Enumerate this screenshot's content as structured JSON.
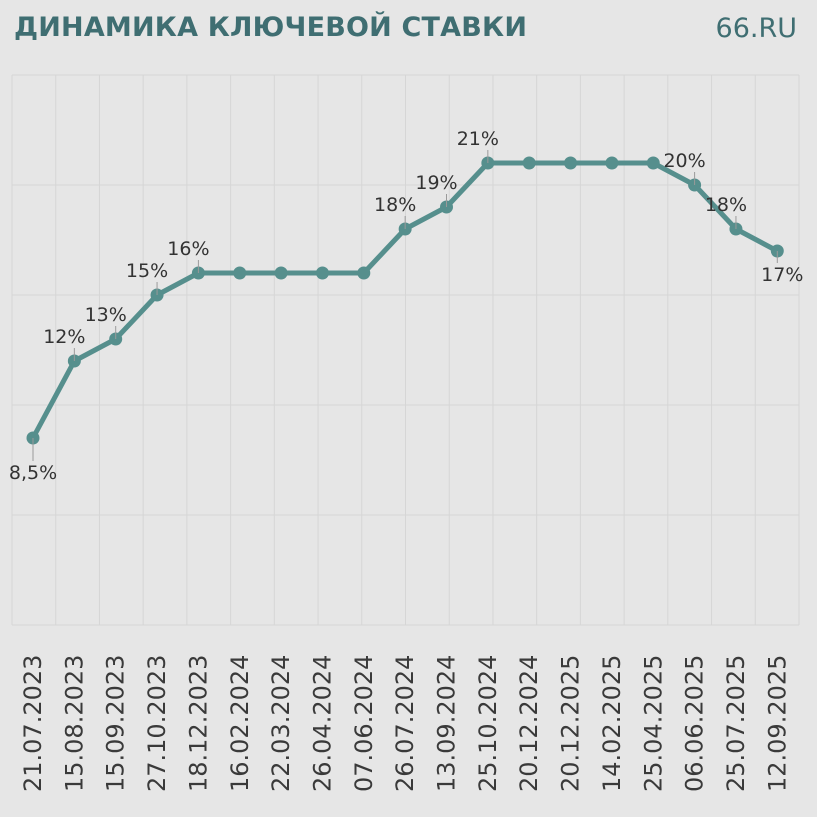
{
  "header": {
    "title": "ДИНАМИКА КЛЮЧЕВОЙ СТАВКИ",
    "brand": "66.RU"
  },
  "colors": {
    "background": "#e6e6e6",
    "title": "#3f6e72",
    "line": "#568f8d",
    "grid": "#d6d6d6",
    "text": "#333333"
  },
  "chart_data": {
    "type": "line",
    "title": "ДИНАМИКА КЛЮЧЕВОЙ СТАВКИ",
    "xlabel": "",
    "ylabel": "",
    "grid": true,
    "ylim": [
      0,
      25
    ],
    "x": [
      "21.07.2023",
      "15.08.2023",
      "15.09.2023",
      "27.10.2023",
      "18.12.2023",
      "16.02.2024",
      "22.03.2024",
      "26.04.2024",
      "07.06.2024",
      "26.07.2024",
      "13.09.2024",
      "25.10.2024",
      "20.12.2024",
      "20.12.2025",
      "14.02.2025",
      "25.04.2025",
      "06.06.2025",
      "25.07.2025",
      "12.09.2025"
    ],
    "series": [
      {
        "values": [
          8.5,
          12,
          13,
          15,
          16,
          16,
          16,
          16,
          16,
          18,
          19,
          21,
          21,
          21,
          21,
          21,
          20,
          18,
          17
        ]
      }
    ],
    "data_labels": [
      {
        "index": 0,
        "text": "8,5%"
      },
      {
        "index": 1,
        "text": "12%"
      },
      {
        "index": 2,
        "text": "13%"
      },
      {
        "index": 3,
        "text": "15%"
      },
      {
        "index": 4,
        "text": "16%"
      },
      {
        "index": 9,
        "text": "18%"
      },
      {
        "index": 10,
        "text": "19%"
      },
      {
        "index": 11,
        "text": "21%"
      },
      {
        "index": 16,
        "text": "20%"
      },
      {
        "index": 17,
        "text": "18%"
      },
      {
        "index": 18,
        "text": "17%"
      }
    ]
  }
}
